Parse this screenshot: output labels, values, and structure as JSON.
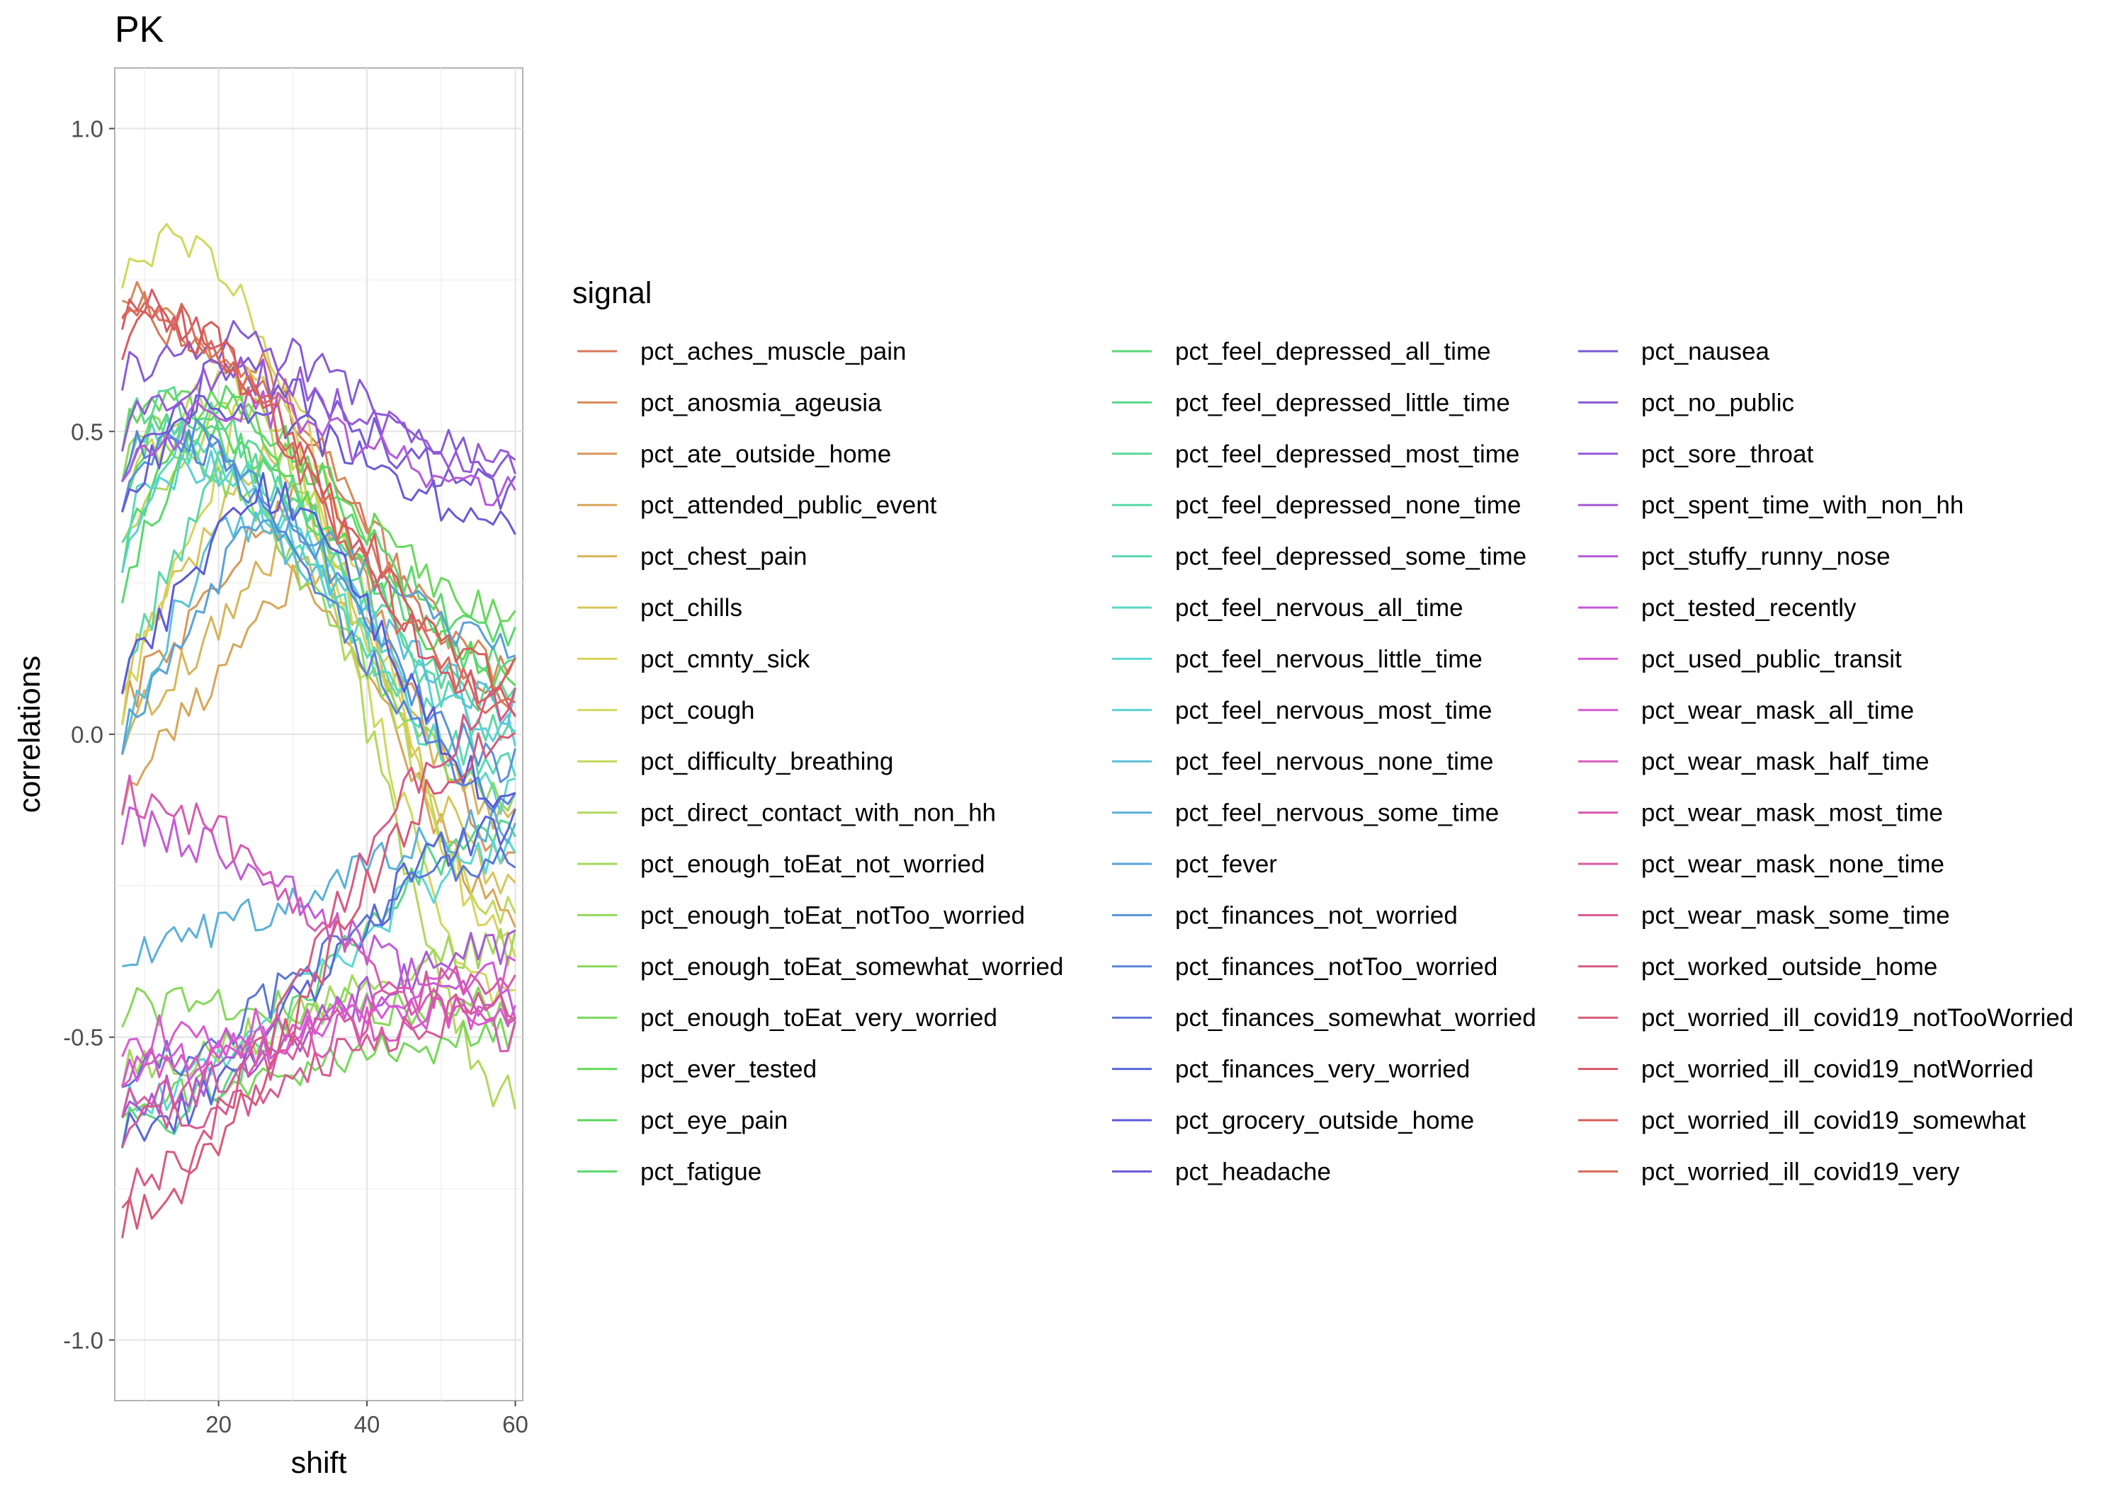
{
  "chart_data": {
    "type": "line",
    "title": "PK",
    "xlabel": "shift",
    "ylabel": "correlations",
    "xlim": [
      6,
      61
    ],
    "ylim": [
      -1.1,
      1.1
    ],
    "x_ticks": [
      20,
      40,
      60
    ],
    "y_ticks": [
      1.0,
      0.5,
      0.0,
      -0.5,
      -1.0
    ],
    "x_tick_labels": [
      "20",
      "40",
      "60"
    ],
    "y_tick_labels": [
      "1.0",
      "0.5",
      "0.0",
      "-0.5",
      "-1.0"
    ],
    "grid": true,
    "legend_title": "signal",
    "legend_position": "right",
    "x_range": [
      7,
      60
    ],
    "series": [
      {
        "name": "pct_aches_muscle_pain",
        "start": 0.72,
        "peak": 0.62,
        "peak_at": 20,
        "end": 0.05
      },
      {
        "name": "pct_anosmia_ageusia",
        "start": 0.75,
        "peak": 0.65,
        "peak_at": 18,
        "end": 0.1
      },
      {
        "name": "pct_ate_outside_home",
        "start": 0.05,
        "peak": 0.4,
        "peak_at": 30,
        "end": -0.2
      },
      {
        "name": "pct_attended_public_event",
        "start": -0.1,
        "peak": 0.25,
        "peak_at": 30,
        "end": -0.3
      },
      {
        "name": "pct_chest_pain",
        "start": 0.0,
        "peak": 0.3,
        "peak_at": 28,
        "end": -0.15
      },
      {
        "name": "pct_chills",
        "start": 0.1,
        "peak": 0.45,
        "peak_at": 25,
        "end": -0.25
      },
      {
        "name": "pct_cmnty_sick",
        "start": 0.05,
        "peak": 0.6,
        "peak_at": 25,
        "end": -0.35
      },
      {
        "name": "pct_cough",
        "start": 0.77,
        "peak": 0.82,
        "peak_at": 15,
        "end": -0.45
      },
      {
        "name": "pct_difficulty_breathing",
        "start": 0.4,
        "peak": 0.6,
        "peak_at": 20,
        "end": -0.3
      },
      {
        "name": "pct_direct_contact_with_non_hh",
        "start": 0.35,
        "peak": 0.55,
        "peak_at": 22,
        "end": -0.6
      },
      {
        "name": "pct_enough_toEat_not_worried",
        "start": -0.55,
        "peak": -0.55,
        "peak_at": 7,
        "end": -0.35
      },
      {
        "name": "pct_enough_toEat_notToo_worried",
        "start": 0.45,
        "peak": 0.5,
        "peak_at": 10,
        "end": -0.1
      },
      {
        "name": "pct_enough_toEat_somewhat_worried",
        "start": -0.45,
        "peak": -0.45,
        "peak_at": 7,
        "end": -0.45
      },
      {
        "name": "pct_enough_toEat_very_worried",
        "start": -0.6,
        "peak": -0.6,
        "peak_at": 7,
        "end": -0.5
      },
      {
        "name": "pct_ever_tested",
        "start": 0.5,
        "peak": 0.55,
        "peak_at": 15,
        "end": 0.2
      },
      {
        "name": "pct_eye_pain",
        "start": 0.3,
        "peak": 0.5,
        "peak_at": 15,
        "end": 0.1
      },
      {
        "name": "pct_fatigue",
        "start": 0.25,
        "peak": 0.55,
        "peak_at": 18,
        "end": 0.15
      },
      {
        "name": "pct_feel_depressed_all_time",
        "start": 0.4,
        "peak": 0.52,
        "peak_at": 12,
        "end": 0.12
      },
      {
        "name": "pct_feel_depressed_little_time",
        "start": -0.65,
        "peak": -0.65,
        "peak_at": 7,
        "end": -0.15
      },
      {
        "name": "pct_feel_depressed_most_time",
        "start": 0.5,
        "peak": 0.55,
        "peak_at": 12,
        "end": 0.05
      },
      {
        "name": "pct_feel_depressed_none_time",
        "start": 0.1,
        "peak": 0.45,
        "peak_at": 20,
        "end": 0.0
      },
      {
        "name": "pct_feel_depressed_some_time",
        "start": 0.45,
        "peak": 0.5,
        "peak_at": 10,
        "end": -0.05
      },
      {
        "name": "pct_feel_nervous_all_time",
        "start": 0.35,
        "peak": 0.48,
        "peak_at": 15,
        "end": -0.1
      },
      {
        "name": "pct_feel_nervous_little_time",
        "start": -0.6,
        "peak": -0.6,
        "peak_at": 7,
        "end": -0.2
      },
      {
        "name": "pct_feel_nervous_most_time",
        "start": 0.3,
        "peak": 0.45,
        "peak_at": 15,
        "end": 0.0
      },
      {
        "name": "pct_feel_nervous_none_time",
        "start": 0.0,
        "peak": 0.35,
        "peak_at": 20,
        "end": 0.05
      },
      {
        "name": "pct_feel_nervous_some_time",
        "start": -0.35,
        "peak": -0.35,
        "peak_at": 7,
        "end": -0.15
      },
      {
        "name": "pct_fever",
        "start": 0.0,
        "peak": 0.35,
        "peak_at": 25,
        "end": 0.15
      },
      {
        "name": "pct_finances_not_worried",
        "start": 0.4,
        "peak": 0.5,
        "peak_at": 15,
        "end": -0.05
      },
      {
        "name": "pct_finances_notToo_worried",
        "start": 0.45,
        "peak": 0.5,
        "peak_at": 12,
        "end": -0.1
      },
      {
        "name": "pct_finances_somewhat_worried",
        "start": -0.55,
        "peak": -0.55,
        "peak_at": 7,
        "end": -0.2
      },
      {
        "name": "pct_finances_very_worried",
        "start": -0.65,
        "peak": -0.65,
        "peak_at": 7,
        "end": -0.15
      },
      {
        "name": "pct_grocery_outside_home",
        "start": 0.1,
        "peak": 0.4,
        "peak_at": 25,
        "end": -0.1
      },
      {
        "name": "pct_headache",
        "start": 0.4,
        "peak": 0.55,
        "peak_at": 18,
        "end": 0.35
      },
      {
        "name": "pct_nausea",
        "start": 0.45,
        "peak": 0.6,
        "peak_at": 20,
        "end": 0.4
      },
      {
        "name": "pct_no_public",
        "start": 0.6,
        "peak": 0.65,
        "peak_at": 20,
        "end": 0.45
      },
      {
        "name": "pct_sore_throat",
        "start": 0.5,
        "peak": 0.6,
        "peak_at": 20,
        "end": 0.45
      },
      {
        "name": "pct_spent_time_with_non_hh",
        "start": -0.6,
        "peak": -0.6,
        "peak_at": 7,
        "end": -0.35
      },
      {
        "name": "pct_stuffy_runny_nose",
        "start": 0.45,
        "peak": 0.55,
        "peak_at": 20,
        "end": 0.4
      },
      {
        "name": "pct_tested_recently",
        "start": -0.15,
        "peak": -0.15,
        "peak_at": 7,
        "end": -0.45
      },
      {
        "name": "pct_used_public_transit",
        "start": -0.55,
        "peak": -0.55,
        "peak_at": 7,
        "end": -0.4
      },
      {
        "name": "pct_wear_mask_all_time",
        "start": -0.5,
        "peak": -0.5,
        "peak_at": 7,
        "end": -0.45
      },
      {
        "name": "pct_wear_mask_half_time",
        "start": -0.55,
        "peak": -0.55,
        "peak_at": 7,
        "end": -0.45
      },
      {
        "name": "pct_wear_mask_most_time",
        "start": -0.1,
        "peak": -0.1,
        "peak_at": 7,
        "end": -0.5
      },
      {
        "name": "pct_wear_mask_none_time",
        "start": -0.6,
        "peak": -0.6,
        "peak_at": 7,
        "end": -0.4
      },
      {
        "name": "pct_wear_mask_some_time",
        "start": -0.65,
        "peak": -0.65,
        "peak_at": 7,
        "end": -0.45
      },
      {
        "name": "pct_worked_outside_home",
        "start": -0.75,
        "peak": -0.75,
        "peak_at": 7,
        "end": 0.05
      },
      {
        "name": "pct_worried_ill_covid19_notTooWorried",
        "start": -0.8,
        "peak": -0.8,
        "peak_at": 7,
        "end": 0.0
      },
      {
        "name": "pct_worried_ill_covid19_notWorried",
        "start": 0.7,
        "peak": 0.7,
        "peak_at": 10,
        "end": 0.05
      },
      {
        "name": "pct_worried_ill_covid19_somewhat",
        "start": 0.65,
        "peak": 0.68,
        "peak_at": 12,
        "end": 0.1
      },
      {
        "name": "pct_worried_ill_covid19_very",
        "start": 0.72,
        "peak": 0.72,
        "peak_at": 8,
        "end": 0.05
      }
    ]
  }
}
